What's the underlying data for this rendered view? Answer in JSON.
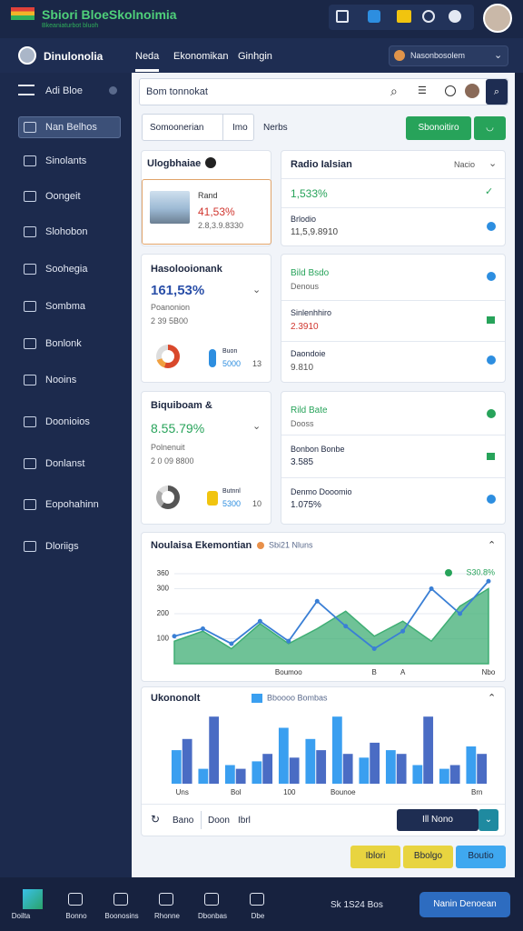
{
  "header": {
    "logo": "Sbiori BloeSkolnoimia",
    "logo_sub": "Bkeaniaturbot bluoh"
  },
  "topbar": {
    "user": "Dinulonolia",
    "tabs": [
      "Neda",
      "Ekonomikan",
      "Ginhgin"
    ],
    "dropdown": "Nasonbosolem"
  },
  "sidebar": {
    "title": "Adi Bloe",
    "items": [
      "Nan Belhos",
      "Sinolants",
      "Oongeit",
      "Slohobon",
      "Soohegia",
      "Sombma",
      "Bonlonk",
      "Nooins",
      "Doonioios",
      "Donlanst",
      "Eopohahinn",
      "Dloriigs"
    ]
  },
  "search": {
    "placeholder": "Bom tonnokat"
  },
  "filters": {
    "select": "Somoonerian",
    "chip": "Imo",
    "label": "Nerbs",
    "button": "Sbonoitiro"
  },
  "cards": {
    "a": {
      "title": "Ulogbhaiae",
      "name": "Rand",
      "value": "41,53%",
      "sub": "2.8,3.9.8330"
    },
    "b": {
      "title": "Radio Ialsian",
      "dropdown": "Nacio",
      "value": "1,533%",
      "label": "Brlodio",
      "sub": "11,5,9.8910"
    },
    "c": {
      "title": "Hasolooionank",
      "value": "161,53%",
      "label": "Poanonion",
      "sub": "2 39 5B00",
      "legend": "Buon",
      "legend_value": "5000",
      "count": "13"
    },
    "d": {
      "title": "Bild Bsdo",
      "sub": "Denous",
      "label1": "Sinlenhhiro",
      "value1": "2.3910",
      "label2": "Daondoie",
      "value2": "9.810"
    },
    "e": {
      "title": "Biquiboam &",
      "value": "8.55.79%",
      "label": "Polnenuit",
      "sub": "2 0 09 8800",
      "legend": "Butnnl",
      "legend_value": "5300",
      "count": "10"
    },
    "f": {
      "title": "Rild Bate",
      "sub": "Dooss",
      "label1": "Bonbon Bonbe",
      "value1": "3.585",
      "label2": "Denmo Dooomio",
      "value2": "1.075%"
    }
  },
  "chart_data": [
    {
      "type": "area",
      "title": "Noulaisa Ekemontian",
      "legend_note": "Sbi21 Nluns",
      "annotation": "S30.8%",
      "categories": [
        null,
        null,
        null,
        null,
        "Boumoo",
        null,
        null,
        "B",
        "A",
        null,
        null,
        "Nbo"
      ],
      "series": [
        {
          "color": "#3fae74",
          "values": [
            90,
            130,
            60,
            160,
            80,
            140,
            210,
            110,
            170,
            90,
            230,
            300
          ]
        },
        {
          "color": "#3a7fd5",
          "values": [
            110,
            140,
            80,
            170,
            90,
            250,
            150,
            60,
            130,
            300,
            200,
            330
          ]
        }
      ],
      "ylim": [
        0,
        400
      ],
      "yticks": [
        100,
        200,
        300,
        360
      ],
      "grid": true
    },
    {
      "type": "bar",
      "title": "Ukononolt",
      "categories": [
        "Uns",
        null,
        "Bol",
        null,
        "100",
        null,
        "Bounoe",
        null,
        null,
        null,
        null,
        "Brn"
      ],
      "series": [
        {
          "name": "Bboooo Bombas",
          "color": "#3a9ff0",
          "values": [
            45,
            20,
            25,
            30,
            75,
            60,
            90,
            35,
            45,
            25,
            20,
            50
          ]
        },
        {
          "color": "#4a6cc4",
          "values": [
            60,
            90,
            20,
            40,
            35,
            45,
            40,
            55,
            40,
            90,
            25,
            40
          ]
        }
      ],
      "ylim": [
        0,
        100
      ]
    }
  ],
  "chart_footer": {
    "left": "Bano",
    "mid": "Doon",
    "right": "Ibrl",
    "button": "Ill Nono"
  },
  "actions": [
    "Iblori",
    "Bbolgo",
    "Boutio"
  ],
  "bottom_nav": {
    "items": [
      "Doilta",
      "Bonno",
      "Boonosins",
      "Rhonne",
      "Dbonbas",
      "Dbe"
    ],
    "status": "Sk 1S24 Bos",
    "button": "Nanin Denoean"
  }
}
